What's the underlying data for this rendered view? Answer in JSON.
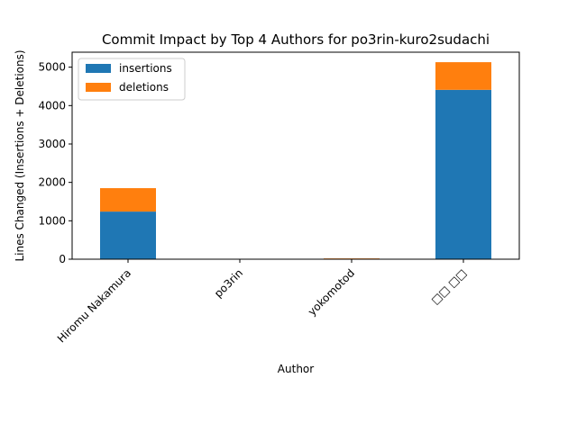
{
  "chart_data": {
    "type": "bar",
    "stacked": true,
    "title": "Commit Impact by Top 4 Authors for po3rin-kuro2sudachi",
    "xlabel": "Author",
    "ylabel": "Lines Changed (Insertions + Deletions)",
    "categories": [
      "Hiromu Nakamura",
      "po3rin",
      "yokomotod",
      "□□ □□"
    ],
    "series": [
      {
        "name": "insertions",
        "color": "#1f77b4",
        "values": [
          1240,
          0,
          8,
          4410
        ]
      },
      {
        "name": "deletions",
        "color": "#ff7f0e",
        "values": [
          610,
          0,
          12,
          720
        ]
      }
    ],
    "ylim": [
      0,
      5390
    ],
    "yticks": [
      0,
      1000,
      2000,
      3000,
      4000,
      5000
    ],
    "grid": false,
    "legend": "upper-left"
  }
}
